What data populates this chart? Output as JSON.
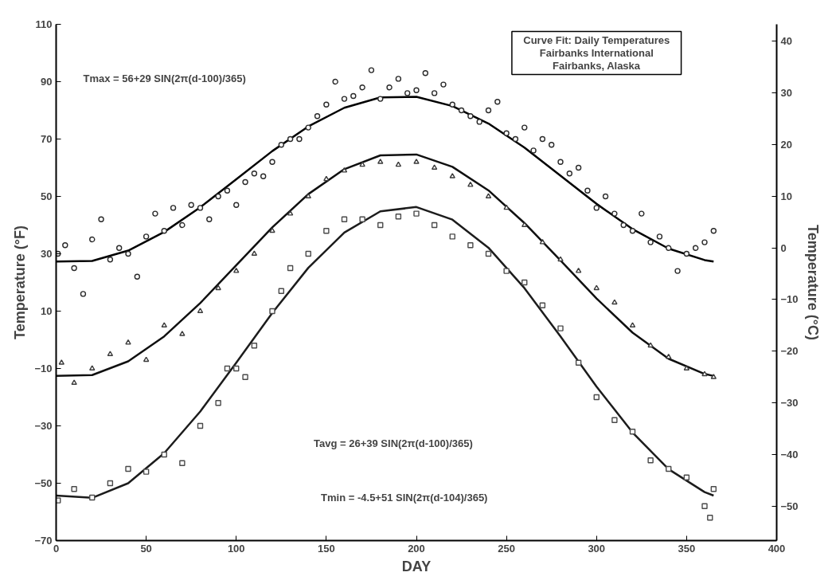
{
  "chart_data": {
    "type": "scatter",
    "xlabel": "DAY",
    "ylabel": "Temperature (°F)",
    "y2label": "Temperature (°C)",
    "xlim": [
      0,
      400
    ],
    "xticks": [
      0,
      50,
      100,
      150,
      200,
      250,
      300,
      350,
      400
    ],
    "ylim": [
      -70,
      110
    ],
    "yticks": [
      -70,
      -50,
      -30,
      -10,
      10,
      30,
      50,
      70,
      90,
      110
    ],
    "y2lim": [
      -56.7,
      43.3
    ],
    "y2ticks": [
      -50,
      -40,
      -30,
      -20,
      -10,
      0,
      10,
      20,
      30,
      40
    ],
    "grid": false,
    "annotations": [
      "Tmax = 56+29 SIN(2π(d-100)/365)",
      "Tavg = 26+39 SIN(2π(d-100)/365)",
      "Tmin = -4.5+51 SIN(2π(d-104)/365)",
      "Curve Fit: Daily Temperatures",
      "Fairbanks International",
      "Fairbanks, Alaska"
    ],
    "series": [
      {
        "marker": "circle",
        "color": "#2a2a2a",
        "x": [
          1,
          5,
          10,
          15,
          20,
          25,
          30,
          35,
          40,
          45,
          50,
          55,
          60,
          65,
          70,
          75,
          80,
          85,
          90,
          95,
          100,
          105,
          110,
          115,
          120,
          125,
          130,
          135,
          140,
          145,
          150,
          155,
          160,
          165,
          170,
          175,
          180,
          185,
          190,
          195,
          200,
          205,
          210,
          215,
          220,
          225,
          230,
          235,
          240,
          245,
          250,
          255,
          260,
          265,
          270,
          275,
          280,
          285,
          290,
          295,
          300,
          305,
          310,
          315,
          320,
          325,
          330,
          335,
          340,
          345,
          350,
          355,
          360,
          365
        ],
        "values": [
          30,
          33,
          25,
          16,
          35,
          42,
          28,
          32,
          30,
          22,
          36,
          44,
          38,
          46,
          40,
          47,
          46,
          42,
          50,
          52,
          47,
          55,
          58,
          57,
          62,
          68,
          70,
          70,
          74,
          78,
          82,
          90,
          84,
          85,
          88,
          94,
          84,
          88,
          91,
          86,
          87,
          93,
          86,
          89,
          82,
          80,
          78,
          76,
          80,
          83,
          72,
          70,
          74,
          66,
          70,
          68,
          62,
          58,
          60,
          52,
          46,
          50,
          44,
          40,
          38,
          44,
          34,
          36,
          32,
          24,
          30,
          32,
          34,
          38
        ]
      },
      {
        "marker": "triangle",
        "color": "#3a3a3a",
        "x": [
          3,
          10,
          20,
          30,
          40,
          50,
          60,
          70,
          80,
          90,
          100,
          110,
          120,
          130,
          140,
          150,
          160,
          170,
          180,
          190,
          200,
          210,
          220,
          230,
          240,
          250,
          260,
          270,
          280,
          290,
          300,
          310,
          320,
          330,
          340,
          350,
          360,
          365
        ],
        "values": [
          -8,
          -15,
          -10,
          -5,
          -1,
          -7,
          5,
          2,
          10,
          18,
          24,
          30,
          38,
          44,
          50,
          56,
          59,
          61,
          62,
          61,
          62,
          60,
          57,
          54,
          50,
          46,
          40,
          34,
          28,
          24,
          18,
          13,
          5,
          -2,
          -6,
          -10,
          -12,
          -13
        ]
      },
      {
        "marker": "square",
        "color": "#4a4a4a",
        "x": [
          1,
          10,
          20,
          30,
          40,
          50,
          60,
          70,
          80,
          90,
          95,
          100,
          105,
          110,
          120,
          125,
          130,
          140,
          150,
          160,
          170,
          180,
          190,
          200,
          210,
          220,
          230,
          240,
          250,
          260,
          270,
          280,
          290,
          300,
          310,
          320,
          330,
          340,
          350,
          360,
          363,
          365
        ],
        "values": [
          -56,
          -52,
          -55,
          -50,
          -45,
          -46,
          -40,
          -43,
          -30,
          -22,
          -10,
          -10,
          -13,
          -2,
          10,
          17,
          25,
          30,
          38,
          42,
          42,
          40,
          43,
          44,
          40,
          36,
          33,
          30,
          24,
          20,
          12,
          4,
          -8,
          -20,
          -28,
          -32,
          -42,
          -45,
          -48,
          -58,
          -62,
          -52
        ]
      },
      {
        "type": "line",
        "color": "#000000",
        "x": [
          0,
          20,
          40,
          60,
          80,
          100,
          120,
          140,
          160,
          180,
          200,
          220,
          240,
          260,
          280,
          300,
          320,
          340,
          360,
          365
        ],
        "values": [
          27.3,
          27.5,
          31.1,
          37.6,
          46.2,
          56,
          65.8,
          74.4,
          80.9,
          84.5,
          84.7,
          81.5,
          75.4,
          67.0,
          57.2,
          47.4,
          38.6,
          31.8,
          27.8,
          27.3
        ]
      },
      {
        "type": "line",
        "color": "#101010",
        "x": [
          0,
          20,
          40,
          60,
          80,
          100,
          120,
          140,
          160,
          180,
          200,
          220,
          240,
          260,
          280,
          300,
          320,
          340,
          360,
          365
        ],
        "values": [
          -12.6,
          -12.3,
          -7.5,
          1.2,
          12.8,
          26,
          39.2,
          50.8,
          59.5,
          64.3,
          64.6,
          60.3,
          52.1,
          40.7,
          27.7,
          14.4,
          2.5,
          -6.6,
          -11.9,
          -12.6
        ]
      },
      {
        "type": "line",
        "color": "#1c1c1c",
        "x": [
          0,
          20,
          40,
          60,
          80,
          100,
          120,
          140,
          160,
          180,
          200,
          220,
          240,
          260,
          280,
          300,
          320,
          340,
          360,
          365
        ],
        "values": [
          -54.3,
          -55.1,
          -50.0,
          -39.5,
          -25.0,
          -8.0,
          9.4,
          25.1,
          37.4,
          44.8,
          46.3,
          41.9,
          32.1,
          18.0,
          1.2,
          -16.3,
          -32.3,
          -45.1,
          -53.1,
          -54.3
        ]
      }
    ]
  }
}
